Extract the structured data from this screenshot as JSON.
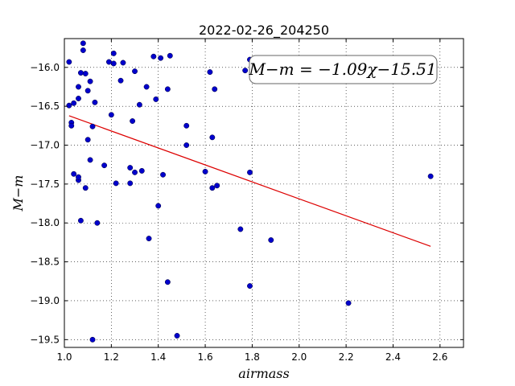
{
  "chart_data": {
    "type": "scatter",
    "title": "2022-02-26_204250",
    "xlabel": "airmass",
    "ylabel": "M−m",
    "xlim": [
      1.0,
      2.7
    ],
    "ylim": [
      -19.6,
      -15.63
    ],
    "y_inverted": true,
    "grid": true,
    "grid_style": "dotted",
    "x_ticks": [
      1.0,
      1.2,
      1.4,
      1.6,
      1.8,
      2.0,
      2.2,
      2.4,
      2.6
    ],
    "x_tick_labels": [
      "1.0",
      "1.2",
      "1.4",
      "1.6",
      "1.8",
      "2.0",
      "2.2",
      "2.4",
      "2.6"
    ],
    "y_ticks": [
      -16.0,
      -16.5,
      -17.0,
      -17.5,
      -18.0,
      -18.5,
      -19.0,
      -19.5
    ],
    "y_tick_labels": [
      "−16.0",
      "−16.5",
      "−17.0",
      "−17.5",
      "−18.0",
      "−18.5",
      "−19.0",
      "−19.5"
    ],
    "annotation": "M−m = −1.09χ−15.51",
    "annotation_placement": "top-right",
    "colors": {
      "points": "#0000cc",
      "fit": "#dd0000"
    },
    "fit_line": {
      "slope": -1.09,
      "intercept": -15.51,
      "x_range": [
        1.02,
        2.56
      ]
    },
    "points": [
      [
        1.02,
        -15.93
      ],
      [
        1.02,
        -16.49
      ],
      [
        1.03,
        -16.71
      ],
      [
        1.03,
        -16.75
      ],
      [
        1.04,
        -16.46
      ],
      [
        1.04,
        -17.37
      ],
      [
        1.06,
        -16.25
      ],
      [
        1.06,
        -16.4
      ],
      [
        1.06,
        -17.45
      ],
      [
        1.06,
        -17.41
      ],
      [
        1.07,
        -16.07
      ],
      [
        1.07,
        -17.97
      ],
      [
        1.08,
        -15.69
      ],
      [
        1.08,
        -15.78
      ],
      [
        1.09,
        -16.08
      ],
      [
        1.09,
        -17.55
      ],
      [
        1.1,
        -16.3
      ],
      [
        1.1,
        -16.93
      ],
      [
        1.11,
        -16.18
      ],
      [
        1.11,
        -17.19
      ],
      [
        1.12,
        -16.76
      ],
      [
        1.12,
        -19.5
      ],
      [
        1.13,
        -16.45
      ],
      [
        1.14,
        -18.0
      ],
      [
        1.17,
        -17.26
      ],
      [
        1.19,
        -15.93
      ],
      [
        1.2,
        -16.61
      ],
      [
        1.21,
        -15.95
      ],
      [
        1.21,
        -15.82
      ],
      [
        1.22,
        -17.49
      ],
      [
        1.24,
        -16.17
      ],
      [
        1.25,
        -15.94
      ],
      [
        1.28,
        -17.29
      ],
      [
        1.28,
        -17.49
      ],
      [
        1.29,
        -16.69
      ],
      [
        1.3,
        -16.05
      ],
      [
        1.3,
        -17.35
      ],
      [
        1.32,
        -16.48
      ],
      [
        1.33,
        -17.33
      ],
      [
        1.35,
        -16.25
      ],
      [
        1.36,
        -18.2
      ],
      [
        1.38,
        -15.86
      ],
      [
        1.39,
        -16.41
      ],
      [
        1.4,
        -17.78
      ],
      [
        1.41,
        -15.88
      ],
      [
        1.42,
        -17.38
      ],
      [
        1.44,
        -16.28
      ],
      [
        1.44,
        -18.76
      ],
      [
        1.45,
        -15.85
      ],
      [
        1.48,
        -19.45
      ],
      [
        1.52,
        -16.75
      ],
      [
        1.52,
        -17.0
      ],
      [
        1.6,
        -17.34
      ],
      [
        1.62,
        -16.06
      ],
      [
        1.63,
        -16.9
      ],
      [
        1.63,
        -17.55
      ],
      [
        1.64,
        -16.28
      ],
      [
        1.65,
        -17.52
      ],
      [
        1.75,
        -18.08
      ],
      [
        1.77,
        -16.04
      ],
      [
        1.79,
        -18.81
      ],
      [
        1.79,
        -17.35
      ],
      [
        1.79,
        -15.9
      ],
      [
        1.88,
        -18.22
      ],
      [
        2.21,
        -19.03
      ],
      [
        2.56,
        -17.4
      ]
    ]
  }
}
